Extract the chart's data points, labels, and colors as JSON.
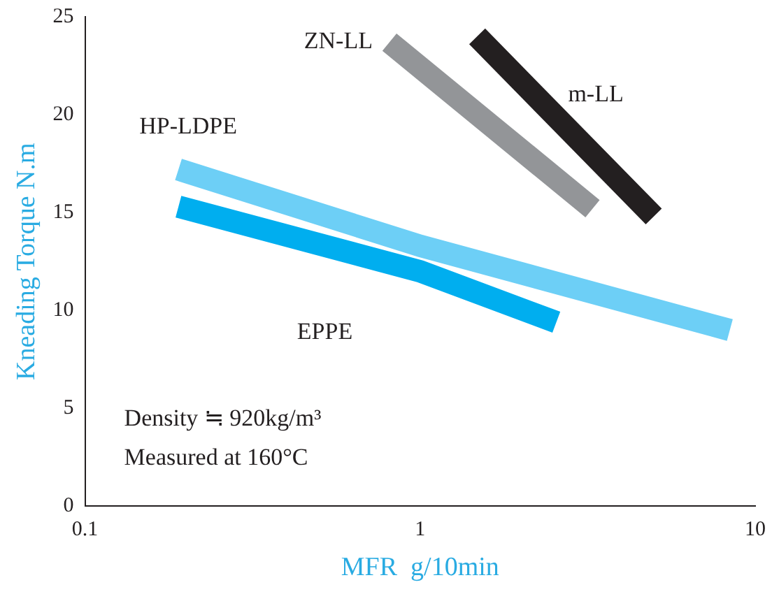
{
  "chart_data": {
    "type": "line",
    "xlabel": "MFR  g/10min",
    "ylabel": "Kneading Torque N.m",
    "log": "x",
    "xlim": [
      0.1,
      10
    ],
    "xticks": [
      0.1,
      1,
      10
    ],
    "ylim": [
      0,
      25
    ],
    "yticks": [
      0,
      5,
      10,
      15,
      20,
      25
    ],
    "grid": false,
    "legend": false,
    "marker": "none",
    "line_style": "solid",
    "series": [
      {
        "name": "ZN-LL",
        "color": "#939598",
        "x": [
          0.81,
          3.27
        ],
        "values": [
          23.7,
          15.2
        ]
      },
      {
        "name": "m-LL",
        "color": "#231f20",
        "x": [
          1.48,
          4.98
        ],
        "values": [
          24.0,
          14.8
        ]
      },
      {
        "name": "HP-LDPE",
        "color": "#6dcff6",
        "x": [
          0.19,
          1,
          8.4
        ],
        "values": [
          17.2,
          13.3,
          9.0
        ]
      },
      {
        "name": "EPPE",
        "color": "#00aeef",
        "x": [
          0.19,
          1,
          2.55
        ],
        "values": [
          15.3,
          12.0,
          9.4
        ]
      }
    ],
    "annotations": [
      "Density ≒ 920kg/m³",
      "Measured at 160°C"
    ]
  }
}
